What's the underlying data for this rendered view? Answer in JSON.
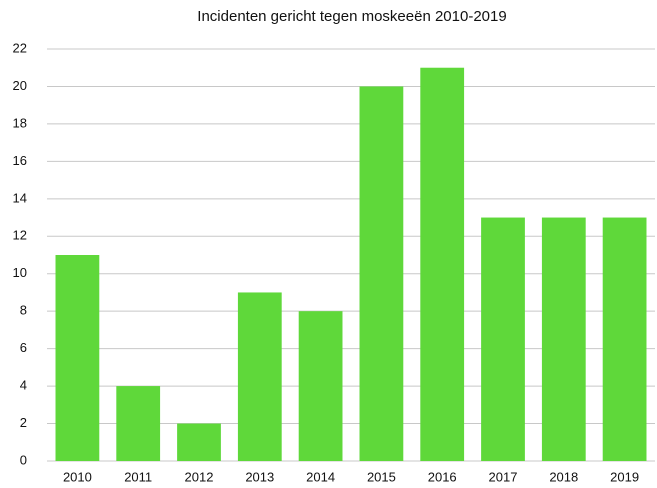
{
  "chart_data": {
    "type": "bar",
    "title": "Incidenten gericht tegen moskeeën 2010-2019",
    "categories": [
      "2010",
      "2011",
      "2012",
      "2013",
      "2014",
      "2015",
      "2016",
      "2017",
      "2018",
      "2019"
    ],
    "values": [
      11,
      4,
      2,
      9,
      8,
      20,
      21,
      13,
      13,
      13
    ],
    "color": "#5fd83a",
    "ylim": [
      0,
      22
    ],
    "yticks": [
      0,
      2,
      4,
      6,
      8,
      10,
      12,
      14,
      16,
      18,
      20,
      22
    ],
    "grid": true
  }
}
